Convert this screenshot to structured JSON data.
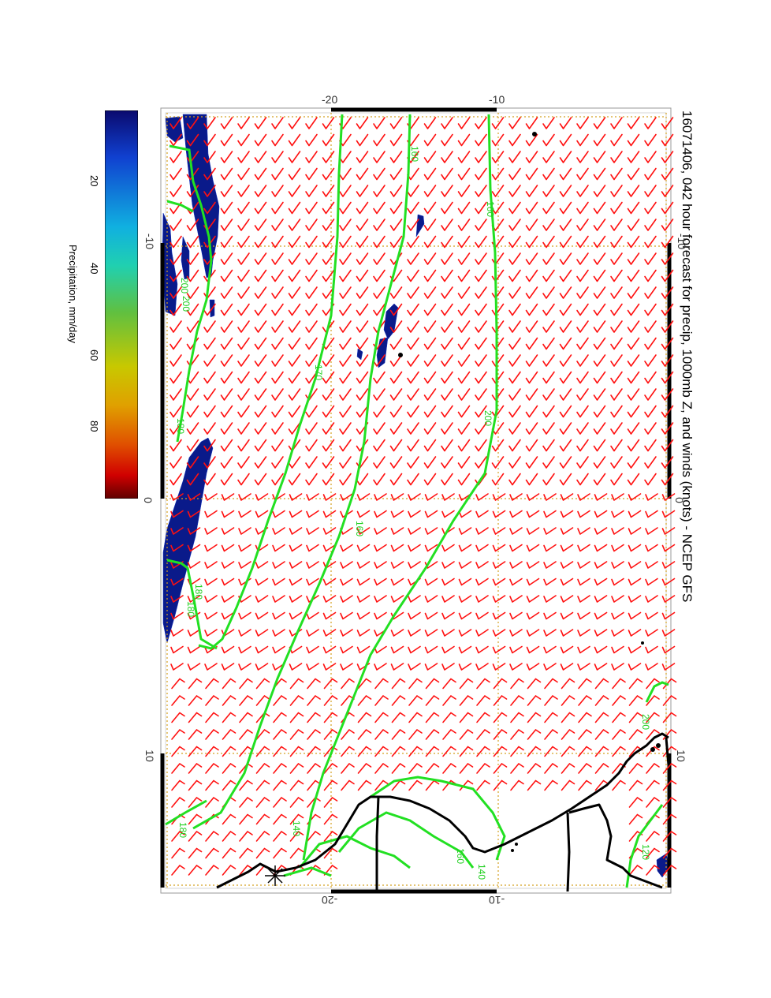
{
  "title": "16071406, 042 hour forecast for precip, 1000mb Z, and winds (knots) - NCEP GFS",
  "colorbar": {
    "label": "Precipitation, mm/day",
    "ticks": [
      "20",
      "40",
      "60",
      "80"
    ],
    "colors": [
      "#0a0a6e",
      "#1040d0",
      "#10b0e0",
      "#20d0b0",
      "#60c040",
      "#c8c800",
      "#e0a000",
      "#e05000",
      "#d00000",
      "#600000"
    ]
  },
  "axes": {
    "top_labels": [
      "-20",
      "-10"
    ],
    "bottom_labels": [
      "-20",
      "-10"
    ],
    "left_labels": [
      "-10",
      "0",
      "10"
    ],
    "right_labels": [
      "-10",
      "0",
      "10"
    ]
  },
  "contours": {
    "color": "#22e022",
    "labels": [
      "160",
      "200",
      "180",
      "170",
      "160",
      "180",
      "200",
      "160",
      "140",
      "120",
      "200",
      "180",
      "160",
      "140",
      "180",
      "200"
    ]
  },
  "colors": {
    "wind_barb": "#ff1010",
    "grid": "#d4a020",
    "precip": "#0a1a8a",
    "coast": "#000000"
  },
  "map_extent": {
    "latitude_range": [
      -27,
      6
    ],
    "longitude_range": [
      -14,
      17
    ],
    "orientation": "rotated 90 degrees clockwise"
  }
}
